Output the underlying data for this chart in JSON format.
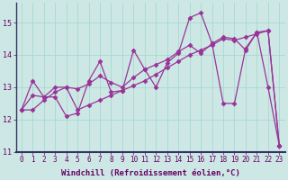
{
  "xlabel": "Windchill (Refroidissement éolien,°C)",
  "background_color": "#cde8e4",
  "plot_bg": "#cde8e4",
  "line_color": "#993399",
  "marker": "D",
  "markersize": 2.5,
  "linewidth": 0.9,
  "xlim": [
    -0.5,
    23.5
  ],
  "ylim": [
    11.0,
    15.6
  ],
  "yticks": [
    11,
    12,
    13,
    14,
    15
  ],
  "xticks": [
    0,
    1,
    2,
    3,
    4,
    5,
    6,
    7,
    8,
    9,
    10,
    11,
    12,
    13,
    14,
    15,
    16,
    17,
    18,
    19,
    20,
    21,
    22,
    23
  ],
  "grid_color": "#a8d8d0",
  "series1_x": [
    0,
    1,
    2,
    3,
    4,
    5,
    6,
    7,
    8,
    9,
    10,
    11,
    12,
    13,
    14,
    15,
    16,
    17,
    18,
    19,
    20,
    21,
    22,
    23
  ],
  "series1_y": [
    12.3,
    13.2,
    12.7,
    12.7,
    12.1,
    12.2,
    13.2,
    13.8,
    12.85,
    12.9,
    14.15,
    13.55,
    13.0,
    13.75,
    14.05,
    15.15,
    15.3,
    14.35,
    12.5,
    12.5,
    14.2,
    14.7,
    13.0,
    11.2
  ],
  "series2_x": [
    0,
    1,
    2,
    3,
    4,
    5,
    6,
    7,
    8,
    9,
    10,
    11,
    12,
    13,
    14,
    15,
    16,
    17,
    18,
    19,
    20,
    21,
    22,
    23
  ],
  "series2_y": [
    12.3,
    12.75,
    12.7,
    13.0,
    13.0,
    12.95,
    13.1,
    13.35,
    13.15,
    13.0,
    13.3,
    13.55,
    13.7,
    13.85,
    14.1,
    14.3,
    14.05,
    14.35,
    14.55,
    14.5,
    14.15,
    14.7,
    14.75,
    11.2
  ],
  "series3_x": [
    0,
    1,
    2,
    3,
    4,
    5,
    6,
    7,
    8,
    9,
    10,
    11,
    12,
    13,
    14,
    15,
    16,
    17,
    18,
    19,
    20,
    21,
    22,
    23
  ],
  "series3_y": [
    12.3,
    12.3,
    12.6,
    12.85,
    13.0,
    12.3,
    12.45,
    12.6,
    12.75,
    12.9,
    13.05,
    13.2,
    13.4,
    13.6,
    13.8,
    14.0,
    14.15,
    14.3,
    14.5,
    14.45,
    14.55,
    14.65,
    14.75,
    11.2
  ],
  "border_color": "#333366",
  "xlabel_color": "#660066",
  "tick_color": "#660066",
  "xlabel_fontsize": 6.5,
  "tick_fontsize": 5.5
}
